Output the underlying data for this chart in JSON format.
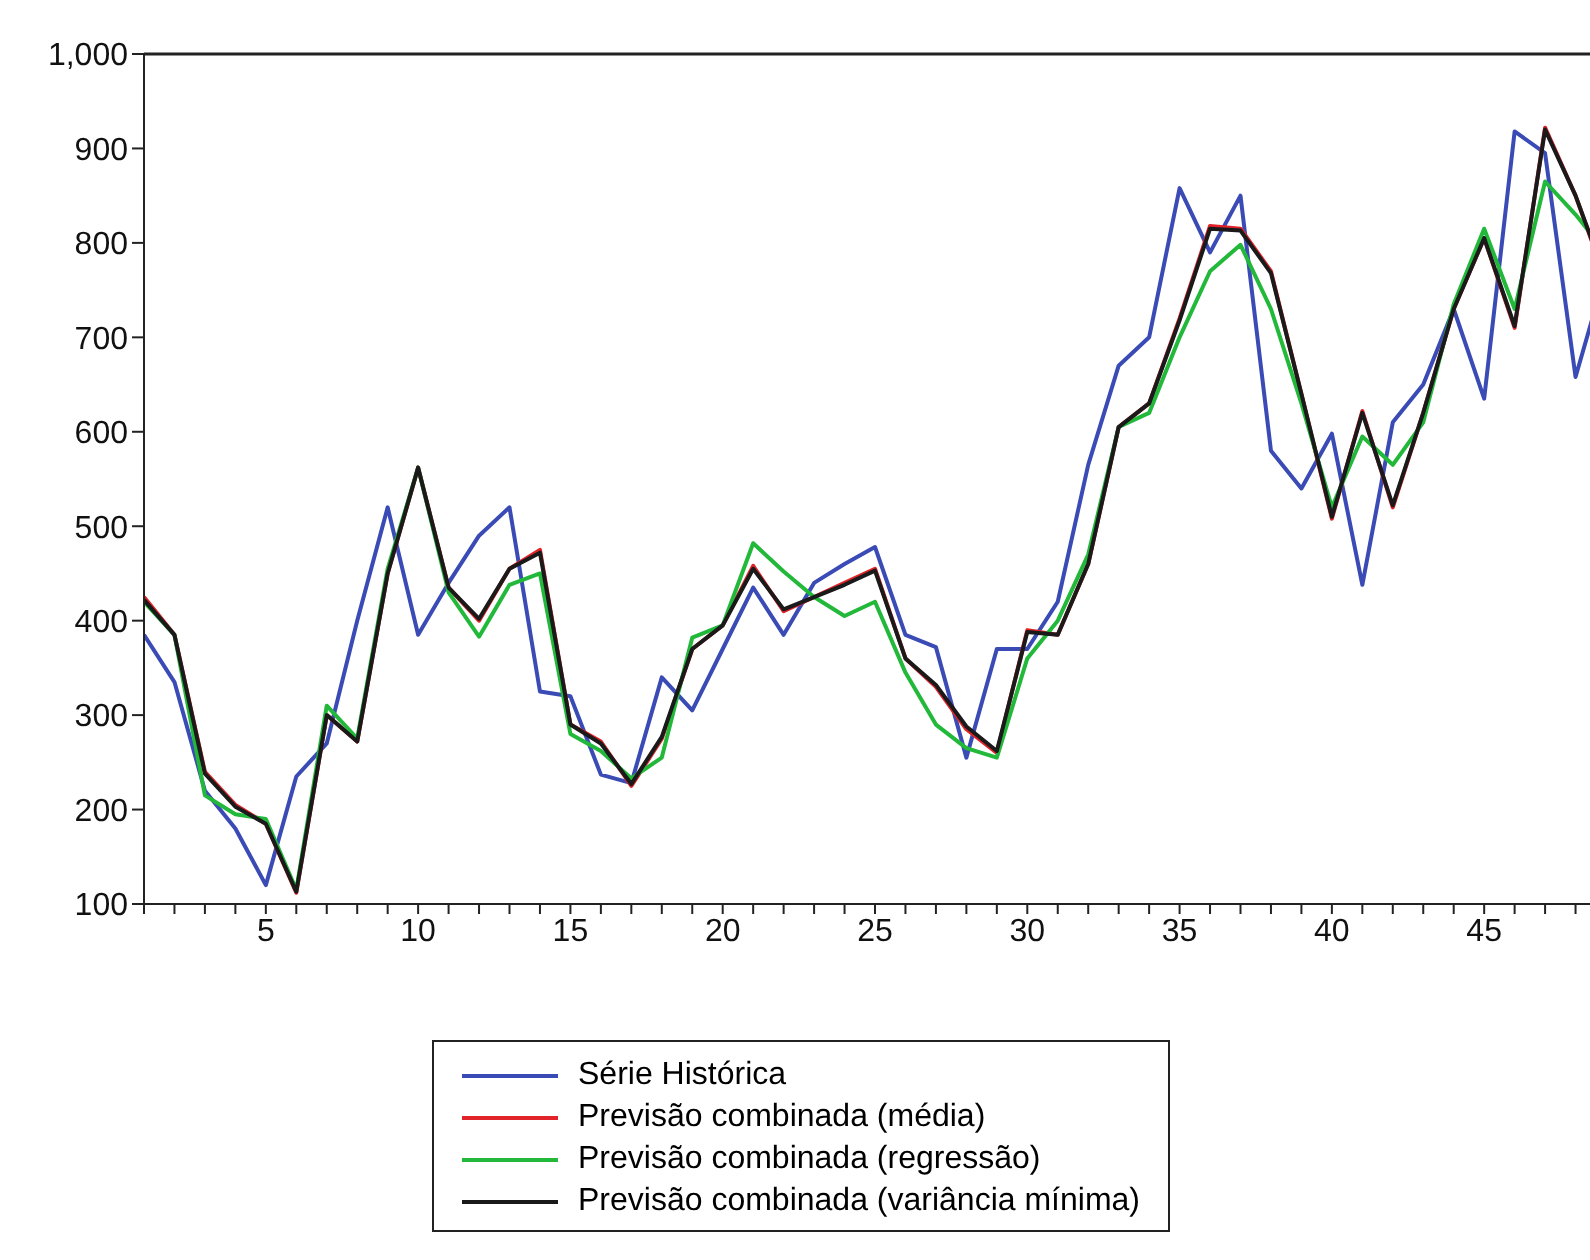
{
  "chart_data": {
    "type": "line",
    "x": [
      1,
      2,
      3,
      4,
      5,
      6,
      7,
      8,
      9,
      10,
      11,
      12,
      13,
      14,
      15,
      16,
      17,
      18,
      19,
      20,
      21,
      22,
      23,
      24,
      25,
      26,
      27,
      28,
      29,
      30,
      31,
      32,
      33,
      34,
      35,
      36,
      37,
      38,
      39,
      40,
      41,
      42,
      43,
      44,
      45,
      46,
      47,
      48,
      49
    ],
    "series": [
      {
        "name": "Série Histórica",
        "color": "#3a4bb5",
        "values": [
          385,
          335,
          220,
          180,
          120,
          235,
          270,
          400,
          520,
          385,
          440,
          490,
          520,
          325,
          320,
          237,
          228,
          340,
          305,
          370,
          435,
          385,
          440,
          460,
          478,
          385,
          372,
          255,
          370,
          370,
          420,
          565,
          670,
          700,
          858,
          790,
          850,
          580,
          540,
          598,
          438,
          610,
          650,
          730,
          635,
          918,
          895,
          658,
          770
        ]
      },
      {
        "name": "Previsão combinada (média)",
        "color": "#e0242a",
        "values": [
          425,
          385,
          240,
          205,
          185,
          112,
          300,
          272,
          450,
          562,
          435,
          400,
          455,
          475,
          290,
          272,
          225,
          275,
          370,
          395,
          458,
          410,
          425,
          440,
          455,
          360,
          330,
          285,
          260,
          390,
          385,
          460,
          605,
          630,
          720,
          818,
          815,
          770,
          640,
          508,
          622,
          520,
          620,
          730,
          805,
          710,
          922,
          850,
          760
        ]
      },
      {
        "name": "Previsão combinada (regressão)",
        "color": "#22b83a",
        "values": [
          420,
          385,
          215,
          195,
          190,
          115,
          310,
          275,
          455,
          562,
          430,
          383,
          438,
          450,
          280,
          262,
          233,
          255,
          382,
          395,
          482,
          452,
          425,
          405,
          420,
          345,
          290,
          265,
          255,
          360,
          400,
          470,
          605,
          620,
          700,
          770,
          798,
          730,
          630,
          520,
          595,
          565,
          610,
          735,
          815,
          730,
          865,
          830,
          790
        ]
      },
      {
        "name": "Previsão combinada (variância mínima)",
        "color": "#1a1a1a",
        "values": [
          422,
          385,
          238,
          203,
          185,
          113,
          300,
          272,
          450,
          562,
          435,
          402,
          455,
          472,
          290,
          270,
          227,
          277,
          370,
          395,
          455,
          412,
          425,
          438,
          453,
          360,
          332,
          288,
          262,
          388,
          385,
          460,
          605,
          630,
          718,
          815,
          813,
          768,
          640,
          510,
          620,
          522,
          620,
          730,
          805,
          712,
          920,
          850,
          762
        ]
      }
    ],
    "xlim": [
      1,
      49
    ],
    "xticks": [
      {
        "value": 1,
        "label": null
      },
      {
        "value": 2,
        "label": null
      },
      {
        "value": 3,
        "label": null
      },
      {
        "value": 4,
        "label": null
      },
      5,
      {
        "value": 6,
        "label": null
      },
      {
        "value": 7,
        "label": null
      },
      {
        "value": 8,
        "label": null
      },
      {
        "value": 9,
        "label": null
      },
      10,
      {
        "value": 11,
        "label": null
      },
      {
        "value": 12,
        "label": null
      },
      {
        "value": 13,
        "label": null
      },
      {
        "value": 14,
        "label": null
      },
      15,
      {
        "value": 16,
        "label": null
      },
      {
        "value": 17,
        "label": null
      },
      {
        "value": 18,
        "label": null
      },
      {
        "value": 19,
        "label": null
      },
      20,
      {
        "value": 21,
        "label": null
      },
      {
        "value": 22,
        "label": null
      },
      {
        "value": 23,
        "label": null
      },
      {
        "value": 24,
        "label": null
      },
      25,
      {
        "value": 26,
        "label": null
      },
      {
        "value": 27,
        "label": null
      },
      {
        "value": 28,
        "label": null
      },
      {
        "value": 29,
        "label": null
      },
      30,
      {
        "value": 31,
        "label": null
      },
      {
        "value": 32,
        "label": null
      },
      {
        "value": 33,
        "label": null
      },
      {
        "value": 34,
        "label": null
      },
      35,
      {
        "value": 36,
        "label": null
      },
      {
        "value": 37,
        "label": null
      },
      {
        "value": 38,
        "label": null
      },
      {
        "value": 39,
        "label": null
      },
      40,
      {
        "value": 41,
        "label": null
      },
      {
        "value": 42,
        "label": null
      },
      {
        "value": 43,
        "label": null
      },
      {
        "value": 44,
        "label": null
      },
      45,
      {
        "value": 46,
        "label": null
      },
      {
        "value": 47,
        "label": null
      },
      {
        "value": 48,
        "label": null
      },
      {
        "value": 49,
        "label": null
      }
    ],
    "ylim": [
      100,
      1000
    ],
    "yticks": [
      100,
      200,
      300,
      400,
      500,
      600,
      700,
      800,
      900,
      {
        "value": 1000,
        "label": "1,000"
      }
    ],
    "grid": false,
    "legend": "bottom",
    "marker": "none",
    "line_style": "solid"
  }
}
